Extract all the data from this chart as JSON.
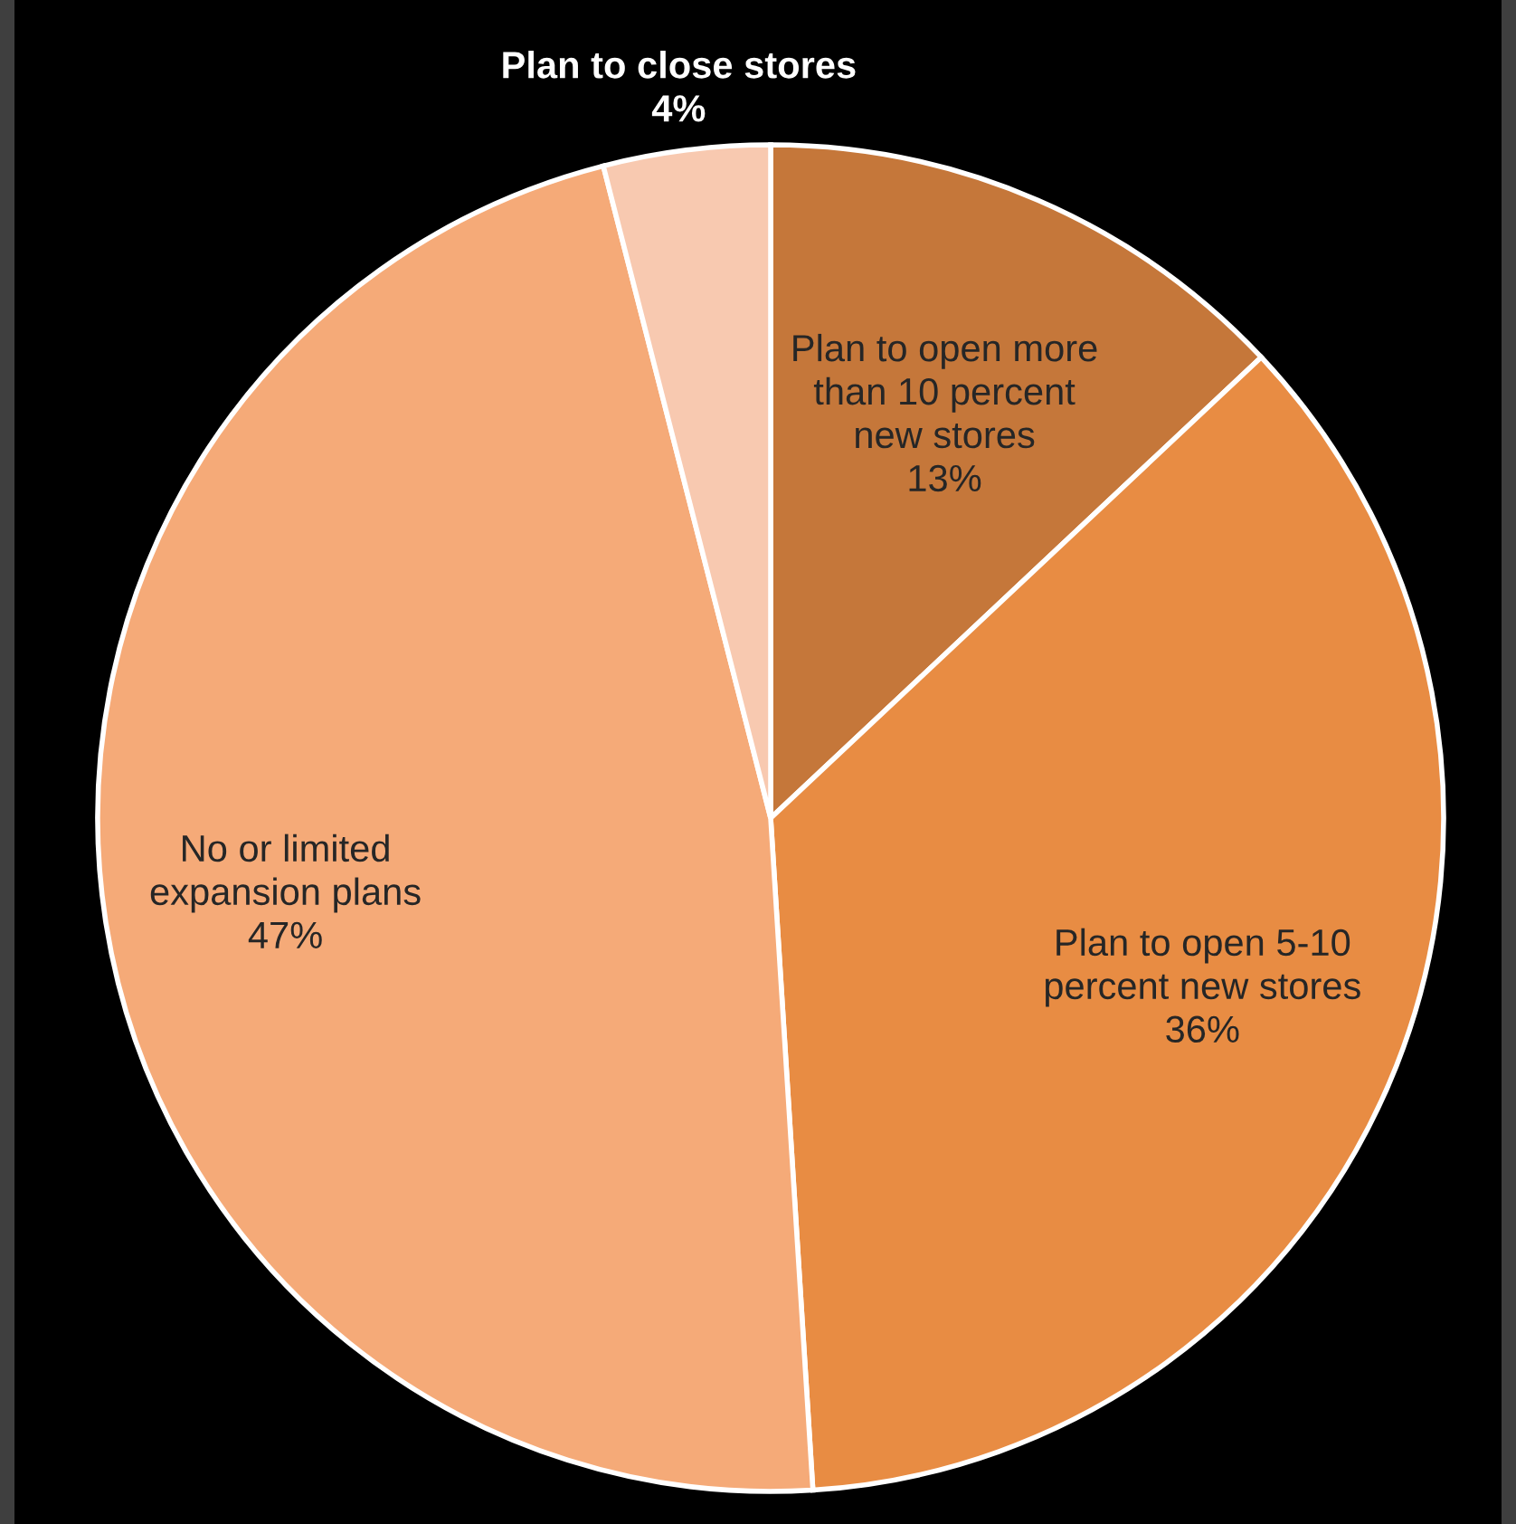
{
  "chart_data": {
    "type": "pie",
    "categories": [
      "Plan to open more\nthan 10 percent\nnew stores",
      "Plan to open 5-10\npercent new stores",
      "No or limited\nexpansion plans",
      "Plan to close stores"
    ],
    "values": [
      13,
      36,
      47,
      4
    ],
    "value_labels": [
      "13%",
      "36%",
      "47%",
      "4%"
    ],
    "colors": [
      "#c5773a",
      "#e88c43",
      "#f5aa78",
      "#f8c9b0"
    ],
    "legend": false
  }
}
